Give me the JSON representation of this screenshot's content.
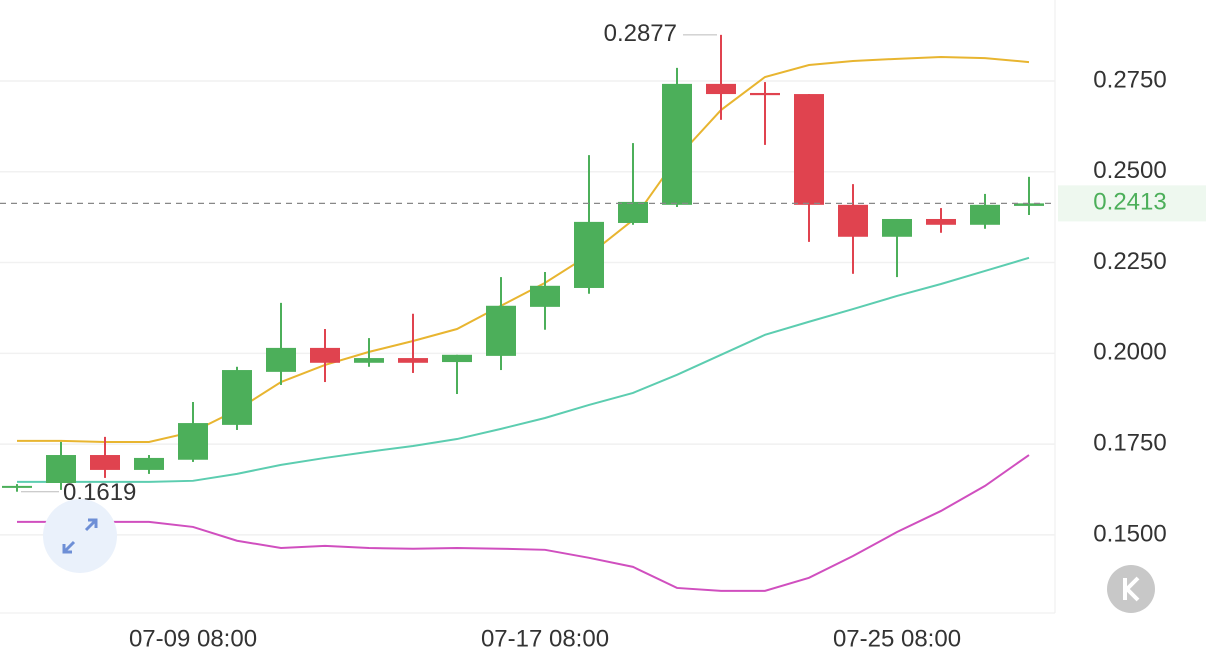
{
  "chart_data": {
    "type": "candlestick",
    "categories": [
      null,
      null,
      null,
      null,
      "07-09 08:00",
      null,
      null,
      null,
      null,
      null,
      null,
      null,
      "07-17 08:00",
      null,
      null,
      null,
      null,
      null,
      null,
      null,
      "07-25 08:00",
      null,
      null,
      null
    ],
    "open": [
      0.163,
      0.1643,
      0.172,
      0.1679,
      0.1707,
      0.1803,
      0.1949,
      0.2015,
      0.1974,
      0.1987,
      0.1976,
      0.1993,
      0.2128,
      0.218,
      0.2359,
      0.2409,
      0.2742,
      0.2717,
      0.2714,
      0.2409,
      0.2321,
      0.237,
      0.2354,
      0.2406
    ],
    "high": [
      0.164,
      0.1756,
      0.177,
      0.172,
      0.1866,
      0.1963,
      0.2139,
      0.2067,
      0.2042,
      0.2109,
      0.1996,
      0.221,
      0.2224,
      0.2546,
      0.2579,
      0.2786,
      0.2877,
      0.2747,
      0.2714,
      0.2466,
      0.237,
      0.24,
      0.2439,
      0.2486
    ],
    "low": [
      0.1619,
      0.1624,
      0.1657,
      0.1668,
      0.1701,
      0.1789,
      0.1913,
      0.1921,
      0.1963,
      0.1946,
      0.1888,
      0.1954,
      0.2065,
      0.2164,
      0.2354,
      0.2403,
      0.2643,
      0.2574,
      0.2307,
      0.2219,
      0.221,
      0.2332,
      0.2343,
      0.2381
    ],
    "close": [
      0.1635,
      0.172,
      0.1679,
      0.1712,
      0.1808,
      0.1954,
      0.2015,
      0.1974,
      0.1987,
      0.1974,
      0.1996,
      0.2131,
      0.2186,
      0.2362,
      0.2417,
      0.2742,
      0.2714,
      0.2711,
      0.2409,
      0.2321,
      0.237,
      0.2354,
      0.2409,
      0.2413
    ],
    "up_color": "#4caf5a",
    "down_color": "#e0434f",
    "lines": [
      {
        "color": "#e8b530",
        "values": [
          0.1759,
          0.1759,
          0.1756,
          0.1756,
          0.1784,
          0.1844,
          0.1921,
          0.1968,
          0.2004,
          0.2034,
          0.2067,
          0.2131,
          0.2194,
          0.2271,
          0.2367,
          0.2538,
          0.267,
          0.2761,
          0.2794,
          0.2805,
          0.2811,
          0.2816,
          0.2813,
          0.2802
        ]
      },
      {
        "color": "#5ccdb0",
        "values": [
          0.1646,
          0.1646,
          0.1646,
          0.1646,
          0.1649,
          0.1668,
          0.1693,
          0.1712,
          0.1729,
          0.1745,
          0.1764,
          0.1792,
          0.1822,
          0.1858,
          0.1891,
          0.1941,
          0.1996,
          0.2051,
          0.2087,
          0.2122,
          0.2158,
          0.2191,
          0.2227,
          0.2263
        ]
      },
      {
        "color": "#d04fbf",
        "values": [
          0.1536,
          0.1536,
          0.1536,
          0.1536,
          0.1522,
          0.1484,
          0.1464,
          0.147,
          0.1464,
          0.1462,
          0.1464,
          0.1462,
          0.1459,
          0.1437,
          0.1412,
          0.1354,
          0.1346,
          0.1346,
          0.1382,
          0.1442,
          0.1508,
          0.1566,
          0.1635,
          0.172
        ]
      }
    ],
    "ylim": [
      0.1285,
      0.2973
    ],
    "yticks": [
      {
        "value": 0.15,
        "label": "0.1500"
      },
      {
        "value": 0.175,
        "label": "0.1750"
      },
      {
        "value": 0.2,
        "label": "0.2000"
      },
      {
        "value": 0.225,
        "label": "0.2250"
      },
      {
        "value": 0.25,
        "label": "0.2500"
      },
      {
        "value": 0.275,
        "label": "0.2750"
      }
    ],
    "grid": true,
    "max_label": 0.2877,
    "min_label": 0.1619,
    "last_price": 0.2413
  }
}
